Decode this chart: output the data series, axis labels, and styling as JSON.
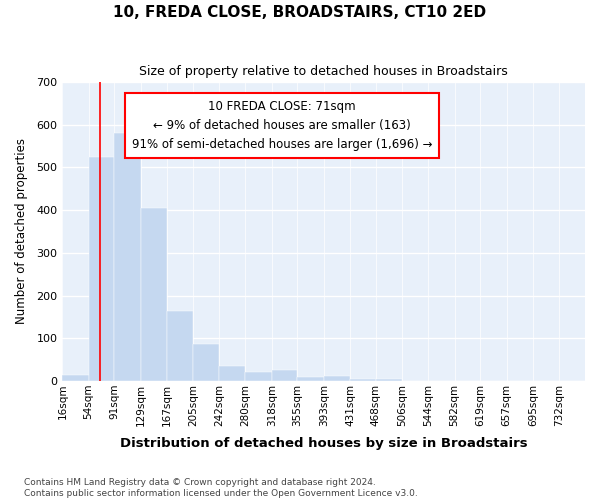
{
  "title": "10, FREDA CLOSE, BROADSTAIRS, CT10 2ED",
  "subtitle": "Size of property relative to detached houses in Broadstairs",
  "xlabel": "Distribution of detached houses by size in Broadstairs",
  "ylabel": "Number of detached properties",
  "bar_color": "#c5d8f0",
  "bar_edge_color": "#c5d8f0",
  "background_color": "#e8f0fa",
  "grid_color": "#ffffff",
  "red_line_x": 71,
  "annotation_text_lines": [
    "10 FREDA CLOSE: 71sqm",
    "← 9% of detached houses are smaller (163)",
    "91% of semi-detached houses are larger (1,696) →"
  ],
  "bin_edges": [
    16,
    54,
    91,
    129,
    167,
    205,
    242,
    280,
    318,
    355,
    393,
    431,
    468,
    506,
    544,
    582,
    619,
    657,
    695,
    732,
    770
  ],
  "bin_counts": [
    15,
    525,
    580,
    405,
    163,
    87,
    35,
    22,
    25,
    10,
    12,
    5,
    4,
    0,
    0,
    0,
    0,
    0,
    0,
    0
  ],
  "ylim": [
    0,
    700
  ],
  "yticks": [
    0,
    100,
    200,
    300,
    400,
    500,
    600,
    700
  ],
  "footer_line1": "Contains HM Land Registry data © Crown copyright and database right 2024.",
  "footer_line2": "Contains public sector information licensed under the Open Government Licence v3.0."
}
